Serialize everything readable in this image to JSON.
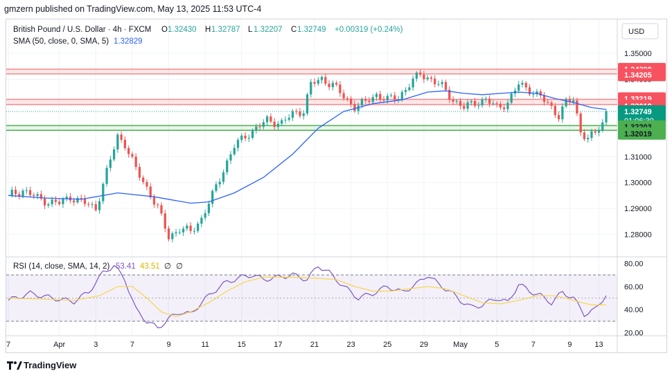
{
  "header": {
    "publisher_line": "gmzern published on TradingView.com, May 13, 2025 11:53 UTC-4"
  },
  "legend": {
    "symbol": "British Pound / U.S. Dollar · 4h · FXCM",
    "open_label": "O",
    "open": "1.32430",
    "high_label": "H",
    "high": "1.32787",
    "low_label": "L",
    "low": "1.32207",
    "close_label": "C",
    "close": "1.32749",
    "change": "+0.00319 (+0.24%)",
    "sma_label": "SMA (50, close, 0, SMA, 5)",
    "sma_value": "1.32829",
    "rsi_label": "RSI (14, close, SMA, 14, 2)",
    "rsi_value": "53.41",
    "rsi_ma_value": "43.51",
    "rsi_empty1": "∅",
    "rsi_empty2": "∅"
  },
  "currency": "USD",
  "footer": {
    "brand": "TradingView"
  },
  "colors": {
    "up": "#26a69a",
    "down": "#ef5350",
    "sma": "#2962ff",
    "rsi": "#7e57c2",
    "rsi_ma": "#f7d54a",
    "resistance": "#f28b8d",
    "support": "#4caf50"
  },
  "chart_data": [
    {
      "type": "candlestick",
      "pane": "price",
      "ylim": [
        1.2715,
        1.3535
      ],
      "y_ticks": [
        "1.35000",
        "1.34000",
        "1.33000",
        "1.32000",
        "1.31000",
        "1.30000",
        "1.29000",
        "1.28000"
      ],
      "x_tick_labels": [
        "7",
        "Apr",
        "3",
        "7",
        "9",
        "11",
        "15",
        "17",
        "21",
        "23",
        "25",
        "29",
        "May",
        "5",
        "7",
        "9",
        "13"
      ],
      "resistance_zones": [
        {
          "top_label": "1.34390",
          "bottom_label": "1.34205",
          "top": 1.3439,
          "bottom": 1.34205
        },
        {
          "top_label": "1.33219",
          "bottom_label": "1.33019",
          "top": 1.33219,
          "bottom": 1.33019
        }
      ],
      "support_zone": {
        "top_label": "1.32203",
        "bottom_label": "1.32019",
        "top": 1.32203,
        "bottom": 1.32019
      },
      "last_price": {
        "label": "1.32749",
        "countdown": "01:06:30",
        "value": 1.32749
      },
      "sma_label": "1.32829",
      "close_path": [
        [
          0,
          1.295
        ],
        [
          4,
          1.297
        ],
        [
          8,
          1.294
        ],
        [
          11,
          1.2925
        ],
        [
          14,
          1.292
        ],
        [
          17,
          1.2945
        ],
        [
          21,
          1.292
        ],
        [
          24,
          1.29
        ],
        [
          27,
          1.304
        ],
        [
          30,
          1.318
        ],
        [
          32,
          1.315
        ],
        [
          35,
          1.305
        ],
        [
          38,
          1.298
        ],
        [
          41,
          1.29
        ],
        [
          44,
          1.279
        ],
        [
          47,
          1.282
        ],
        [
          50,
          1.281
        ],
        [
          53,
          1.286
        ],
        [
          56,
          1.295
        ],
        [
          59,
          1.305
        ],
        [
          62,
          1.314
        ],
        [
          65,
          1.318
        ],
        [
          68,
          1.321
        ],
        [
          71,
          1.324
        ],
        [
          75,
          1.323
        ],
        [
          78,
          1.3265
        ],
        [
          81,
          1.328
        ],
        [
          83,
          1.338
        ],
        [
          86,
          1.34
        ],
        [
          89,
          1.338
        ],
        [
          92,
          1.333
        ],
        [
          95,
          1.3295
        ],
        [
          98,
          1.331
        ],
        [
          101,
          1.334
        ],
        [
          104,
          1.332
        ],
        [
          107,
          1.333
        ],
        [
          110,
          1.338
        ],
        [
          113,
          1.342
        ],
        [
          116,
          1.34
        ],
        [
          119,
          1.337
        ],
        [
          122,
          1.332
        ],
        [
          125,
          1.329
        ],
        [
          128,
          1.331
        ],
        [
          131,
          1.332
        ],
        [
          134,
          1.329
        ],
        [
          137,
          1.331
        ],
        [
          140,
          1.338
        ],
        [
          143,
          1.336
        ],
        [
          146,
          1.333
        ],
        [
          149,
          1.329
        ],
        [
          151,
          1.326
        ],
        [
          153,
          1.331
        ],
        [
          155,
          1.332
        ],
        [
          157,
          1.32
        ],
        [
          159,
          1.317
        ],
        [
          161,
          1.319
        ],
        [
          163,
          1.323
        ],
        [
          164,
          1.3275
        ]
      ],
      "sma_path": [
        [
          0,
          1.295
        ],
        [
          10,
          1.294
        ],
        [
          20,
          1.2935
        ],
        [
          30,
          1.296
        ],
        [
          40,
          1.2945
        ],
        [
          50,
          1.292
        ],
        [
          55,
          1.2925
        ],
        [
          62,
          1.296
        ],
        [
          70,
          1.302
        ],
        [
          78,
          1.311
        ],
        [
          85,
          1.321
        ],
        [
          92,
          1.3275
        ],
        [
          100,
          1.3305
        ],
        [
          108,
          1.332
        ],
        [
          115,
          1.335
        ],
        [
          120,
          1.3355
        ],
        [
          125,
          1.3345
        ],
        [
          130,
          1.334
        ],
        [
          135,
          1.3345
        ],
        [
          140,
          1.335
        ],
        [
          145,
          1.3345
        ],
        [
          150,
          1.3325
        ],
        [
          155,
          1.331
        ],
        [
          160,
          1.329
        ],
        [
          164,
          1.3283
        ]
      ]
    },
    {
      "type": "line",
      "pane": "rsi",
      "ylim": [
        18,
        82
      ],
      "y_ticks": [
        "80.00",
        "60.00",
        "40.00",
        "20.00"
      ],
      "band": [
        30,
        70
      ],
      "series": [
        {
          "name": "RSI",
          "points": [
            [
              0,
              48
            ],
            [
              6,
              54
            ],
            [
              12,
              50
            ],
            [
              18,
              47
            ],
            [
              22,
              55
            ],
            [
              26,
              72
            ],
            [
              29,
              78
            ],
            [
              32,
              66
            ],
            [
              35,
              40
            ],
            [
              38,
              30
            ],
            [
              41,
              24
            ],
            [
              44,
              32
            ],
            [
              47,
              38
            ],
            [
              50,
              36
            ],
            [
              53,
              46
            ],
            [
              56,
              55
            ],
            [
              60,
              64
            ],
            [
              64,
              68
            ],
            [
              67,
              70
            ],
            [
              70,
              66
            ],
            [
              74,
              68
            ],
            [
              78,
              70
            ],
            [
              82,
              66
            ],
            [
              85,
              78
            ],
            [
              88,
              72
            ],
            [
              92,
              60
            ],
            [
              96,
              50
            ],
            [
              100,
              54
            ],
            [
              104,
              60
            ],
            [
              108,
              55
            ],
            [
              112,
              62
            ],
            [
              115,
              70
            ],
            [
              118,
              62
            ],
            [
              121,
              56
            ],
            [
              124,
              48
            ],
            [
              127,
              42
            ],
            [
              130,
              44
            ],
            [
              134,
              50
            ],
            [
              137,
              46
            ],
            [
              140,
              62
            ],
            [
              143,
              56
            ],
            [
              146,
              52
            ],
            [
              149,
              46
            ],
            [
              152,
              55
            ],
            [
              155,
              50
            ],
            [
              158,
              36
            ],
            [
              161,
              40
            ],
            [
              164,
              53
            ]
          ]
        },
        {
          "name": "RSI-based MA",
          "points": [
            [
              0,
              50
            ],
            [
              10,
              49
            ],
            [
              18,
              48
            ],
            [
              25,
              52
            ],
            [
              30,
              60
            ],
            [
              34,
              60
            ],
            [
              38,
              50
            ],
            [
              42,
              38
            ],
            [
              46,
              34
            ],
            [
              50,
              38
            ],
            [
              55,
              46
            ],
            [
              60,
              56
            ],
            [
              65,
              64
            ],
            [
              70,
              68
            ],
            [
              78,
              68
            ],
            [
              85,
              67
            ],
            [
              90,
              66
            ],
            [
              95,
              60
            ],
            [
              100,
              56
            ],
            [
              105,
              56
            ],
            [
              110,
              58
            ],
            [
              115,
              60
            ],
            [
              120,
              58
            ],
            [
              125,
              52
            ],
            [
              130,
              46
            ],
            [
              135,
              45
            ],
            [
              140,
              48
            ],
            [
              145,
              52
            ],
            [
              150,
              52
            ],
            [
              155,
              48
            ],
            [
              160,
              44
            ],
            [
              164,
              44
            ]
          ]
        }
      ]
    }
  ]
}
